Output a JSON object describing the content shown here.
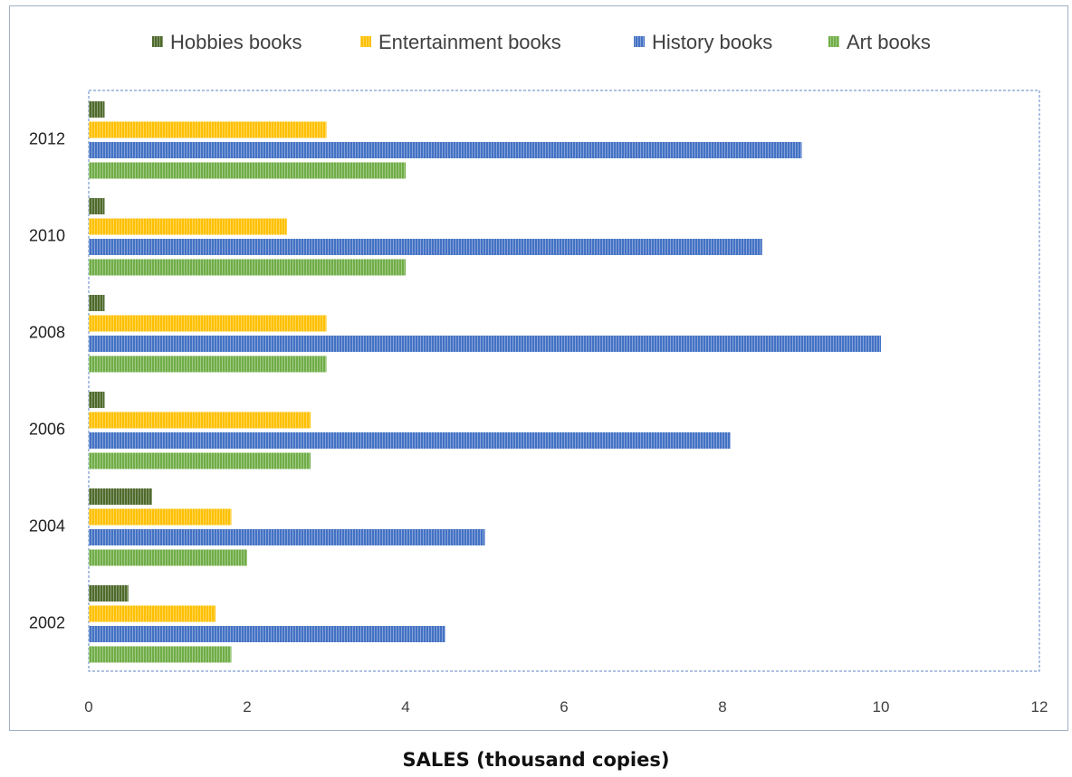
{
  "chart_data": {
    "type": "bar",
    "orientation": "horizontal",
    "title": "",
    "xlabel": "SALES (thousand copies)",
    "ylabel": "",
    "xlim": [
      0,
      12
    ],
    "xticks": [
      0,
      2,
      4,
      6,
      8,
      10,
      12
    ],
    "categories": [
      "2012",
      "2010",
      "2008",
      "2006",
      "2004",
      "2002"
    ],
    "series": [
      {
        "name": "Hobbies books",
        "color": "#4f6a2c",
        "values": [
          0.2,
          0.2,
          0.2,
          0.2,
          0.8,
          0.5
        ]
      },
      {
        "name": "Entertainment books",
        "color": "#ffc000",
        "values": [
          3.0,
          2.5,
          3.0,
          2.8,
          1.8,
          1.6
        ]
      },
      {
        "name": "History books",
        "color": "#4472c4",
        "values": [
          9.0,
          8.5,
          10.0,
          8.1,
          5.0,
          4.5
        ]
      },
      {
        "name": "Art books",
        "color": "#70ad47",
        "values": [
          4.0,
          4.0,
          3.0,
          2.8,
          2.0,
          1.8
        ]
      }
    ],
    "legend": "top",
    "grid": false
  }
}
